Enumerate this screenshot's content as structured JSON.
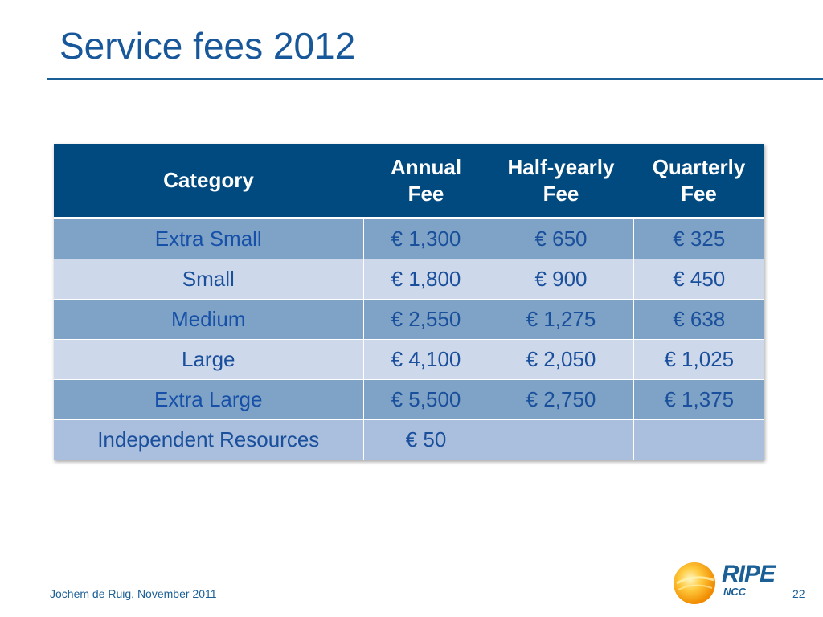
{
  "slide": {
    "title": "Service fees 2012",
    "footer": "Jochem de Ruig, November 2011",
    "page_number": "22"
  },
  "logo": {
    "name": "RIPE",
    "sub": "NCC",
    "colors": {
      "text": "#1a5f96",
      "sun": "#f5a623"
    }
  },
  "table": {
    "headers": [
      "Category",
      "Annual Fee",
      "Half-yearly Fee",
      "Quarterly Fee"
    ],
    "rows": [
      [
        "Extra Small",
        "€ 1,300",
        "€ 650",
        "€ 325"
      ],
      [
        "Small",
        "€ 1,800",
        "€ 900",
        "€ 450"
      ],
      [
        "Medium",
        "€ 2,550",
        "€ 1,275",
        "€ 638"
      ],
      [
        "Large",
        "€ 4,100",
        "€ 2,050",
        "€ 1,025"
      ],
      [
        "Extra Large",
        "€ 5,500",
        "€ 2,750",
        "€ 1,375"
      ],
      [
        "Independent Resources",
        "€ 50",
        "",
        ""
      ]
    ]
  },
  "colors": {
    "title": "#17579a",
    "header_bg": "#004a7f",
    "row_dark": "#7fa3c6",
    "row_light": "#cdd8ea",
    "row_last": "#a9bfdd",
    "cell_text": "#1a4f9c"
  }
}
